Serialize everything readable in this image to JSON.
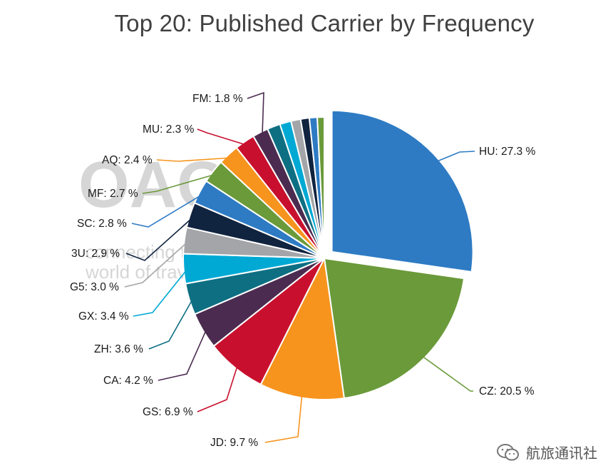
{
  "chart_data": {
    "type": "pie",
    "title": "Top 20: Published Carrier by Frequency",
    "slices": [
      {
        "label": "HU: 27.3 %",
        "value": 27.3,
        "color": "#2e7bc4",
        "exploded": true
      },
      {
        "label": "CZ: 20.5 %",
        "value": 20.5,
        "color": "#6a9a3a"
      },
      {
        "label": "JD: 9.7 %",
        "value": 9.7,
        "color": "#f7941d"
      },
      {
        "label": "GS: 6.9 %",
        "value": 6.9,
        "color": "#c8102e"
      },
      {
        "label": "CA: 4.2 %",
        "value": 4.2,
        "color": "#4b2c50"
      },
      {
        "label": "ZH: 3.6 %",
        "value": 3.6,
        "color": "#0e6f83"
      },
      {
        "label": "GX: 3.4 %",
        "value": 3.4,
        "color": "#00a9d4"
      },
      {
        "label": "G5: 3.0 %",
        "value": 3.0,
        "color": "#a3a5a8"
      },
      {
        "label": "3U: 2.9 %",
        "value": 2.9,
        "color": "#10233f"
      },
      {
        "label": "SC: 2.8 %",
        "value": 2.8,
        "color": "#2e7bc4"
      },
      {
        "label": "MF: 2.7 %",
        "value": 2.7,
        "color": "#6a9a3a"
      },
      {
        "label": "AQ: 2.4 %",
        "value": 2.4,
        "color": "#f7941d"
      },
      {
        "label": "MU: 2.3 %",
        "value": 2.3,
        "color": "#c8102e"
      },
      {
        "label": "FM: 1.8 %",
        "value": 1.8,
        "color": "#4b2c50"
      },
      {
        "label": "",
        "value": 1.5,
        "color": "#0e6f83"
      },
      {
        "label": "",
        "value": 1.3,
        "color": "#00a9d4"
      },
      {
        "label": "",
        "value": 1.1,
        "color": "#a3a5a8"
      },
      {
        "label": "",
        "value": 1.0,
        "color": "#10233f"
      },
      {
        "label": "",
        "value": 0.9,
        "color": "#2e7bc4"
      },
      {
        "label": "",
        "value": 0.8,
        "color": "#6a9a3a"
      }
    ]
  },
  "watermark": {
    "logo_text": "OAG",
    "tagline_1": "connecting the",
    "tagline_2": "world of travel",
    "footer_text": "航旅通讯社",
    "footer_icon": "wechat-icon"
  }
}
